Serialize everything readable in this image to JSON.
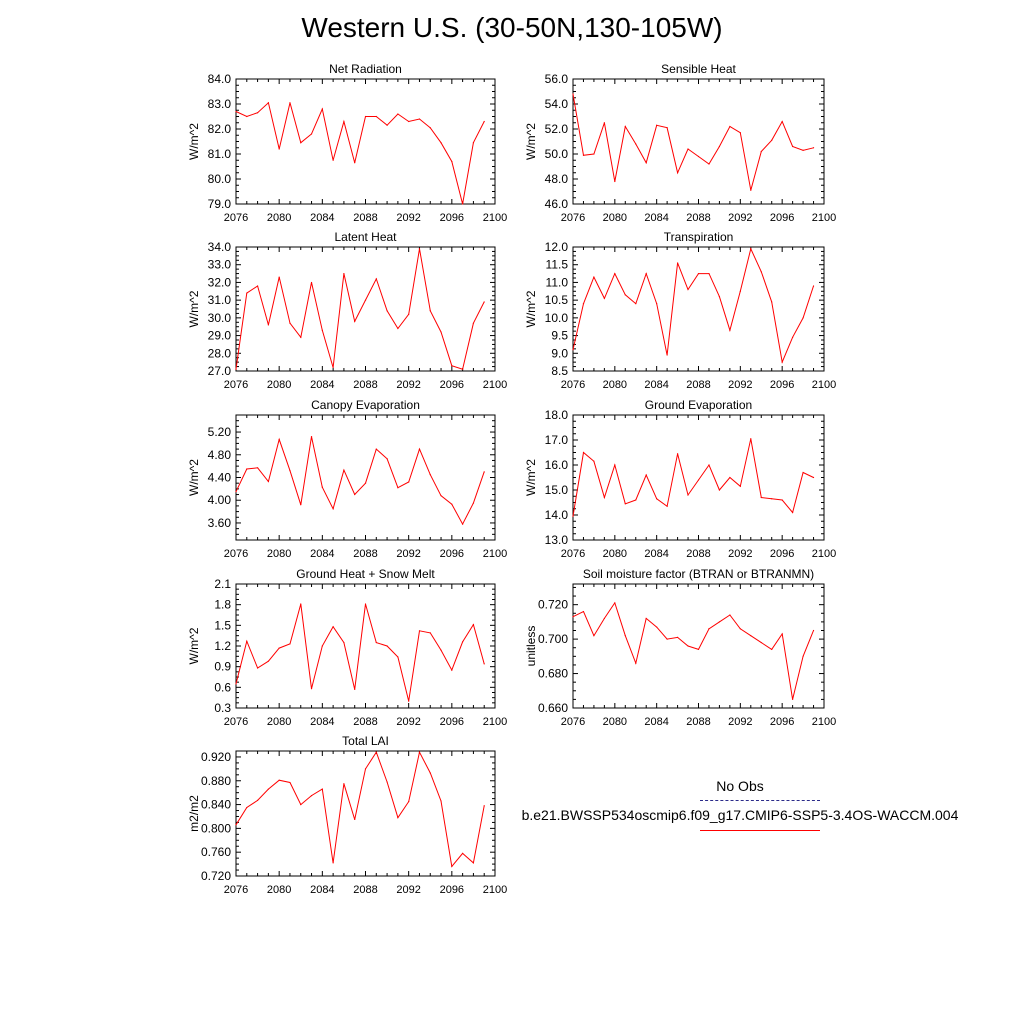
{
  "page_title": "Western U.S. (30-50N,130-105W)",
  "colors": {
    "series": "#ff0000",
    "obs": "#2b2b8a",
    "axis": "#000000"
  },
  "legend": {
    "obs_label": "No Obs",
    "run_label": "b.e21.BWSSP534oscmip6.f09_g17.CMIP6-SSP5-3.4OS-WACCM.004"
  },
  "chart_data": [
    {
      "type": "line",
      "title": "Net Radiation",
      "ylabel": "W/m^2",
      "xlim": [
        2076,
        2100
      ],
      "ylim": [
        79.0,
        84.0
      ],
      "xticks": [
        "2076",
        "2080",
        "2084",
        "2088",
        "2092",
        "2096",
        "2100"
      ],
      "yticks": [
        "79.0",
        "80.0",
        "81.0",
        "82.0",
        "83.0",
        "84.0"
      ],
      "x": [
        2076,
        2077,
        2078,
        2079,
        2080,
        2081,
        2082,
        2083,
        2084,
        2085,
        2086,
        2087,
        2088,
        2089,
        2090,
        2091,
        2092,
        2093,
        2094,
        2095,
        2096,
        2097,
        2098,
        2099
      ],
      "values": [
        82.7,
        82.5,
        82.65,
        83.05,
        81.2,
        83.05,
        81.45,
        81.8,
        82.8,
        80.75,
        82.3,
        80.65,
        82.5,
        82.5,
        82.15,
        82.6,
        82.3,
        82.4,
        82.05,
        81.45,
        80.7,
        79.0,
        81.45,
        82.3
      ]
    },
    {
      "type": "line",
      "title": "Sensible Heat",
      "ylabel": "W/m^2",
      "xlim": [
        2076,
        2100
      ],
      "ylim": [
        46.0,
        56.0
      ],
      "xticks": [
        "2076",
        "2080",
        "2084",
        "2088",
        "2092",
        "2096",
        "2100"
      ],
      "yticks": [
        "46.0",
        "48.0",
        "50.0",
        "52.0",
        "54.0",
        "56.0"
      ],
      "x": [
        2076,
        2077,
        2078,
        2079,
        2080,
        2081,
        2082,
        2083,
        2084,
        2085,
        2086,
        2087,
        2088,
        2089,
        2090,
        2091,
        2092,
        2093,
        2094,
        2095,
        2096,
        2097,
        2098,
        2099
      ],
      "values": [
        54.8,
        49.9,
        50.0,
        52.5,
        47.8,
        52.2,
        50.8,
        49.3,
        52.3,
        52.1,
        48.5,
        50.4,
        49.8,
        49.2,
        50.6,
        52.2,
        51.7,
        47.1,
        50.2,
        51.1,
        52.6,
        50.6,
        50.3,
        50.5
      ]
    },
    {
      "type": "line",
      "title": "Latent Heat",
      "ylabel": "W/m^2",
      "xlim": [
        2076,
        2100
      ],
      "ylim": [
        27.0,
        34.0
      ],
      "xticks": [
        "2076",
        "2080",
        "2084",
        "2088",
        "2092",
        "2096",
        "2100"
      ],
      "yticks": [
        "27.0",
        "28.0",
        "29.0",
        "30.0",
        "31.0",
        "32.0",
        "33.0",
        "34.0"
      ],
      "x": [
        2076,
        2077,
        2078,
        2079,
        2080,
        2081,
        2082,
        2083,
        2084,
        2085,
        2086,
        2087,
        2088,
        2089,
        2090,
        2091,
        2092,
        2093,
        2094,
        2095,
        2096,
        2097,
        2098,
        2099
      ],
      "values": [
        27.1,
        31.4,
        31.8,
        29.6,
        32.3,
        29.7,
        28.9,
        32.0,
        29.3,
        27.2,
        32.5,
        29.8,
        31.0,
        32.2,
        30.4,
        29.4,
        30.2,
        33.9,
        30.4,
        29.2,
        27.3,
        27.1,
        29.7,
        30.9
      ]
    },
    {
      "type": "line",
      "title": "Transpiration",
      "ylabel": "W/m^2",
      "xlim": [
        2076,
        2100
      ],
      "ylim": [
        8.5,
        12.0
      ],
      "xticks": [
        "2076",
        "2080",
        "2084",
        "2088",
        "2092",
        "2096",
        "2100"
      ],
      "yticks": [
        "8.5",
        "9.0",
        "9.5",
        "10.0",
        "10.5",
        "11.0",
        "11.5",
        "12.0"
      ],
      "x": [
        2076,
        2077,
        2078,
        2079,
        2080,
        2081,
        2082,
        2083,
        2084,
        2085,
        2086,
        2087,
        2088,
        2089,
        2090,
        2091,
        2092,
        2093,
        2094,
        2095,
        2096,
        2097,
        2098,
        2099
      ],
      "values": [
        9.1,
        10.4,
        11.15,
        10.55,
        11.25,
        10.65,
        10.4,
        11.25,
        10.4,
        8.95,
        11.55,
        10.8,
        11.25,
        11.25,
        10.6,
        9.65,
        10.75,
        11.95,
        11.3,
        10.45,
        8.75,
        9.45,
        10.0,
        10.9
      ]
    },
    {
      "type": "line",
      "title": "Canopy Evaporation",
      "ylabel": "W/m^2",
      "xlim": [
        2076,
        2100
      ],
      "ylim": [
        3.3,
        5.5
      ],
      "xticks": [
        "2076",
        "2080",
        "2084",
        "2088",
        "2092",
        "2096",
        "2100"
      ],
      "yticks": [
        "3.60",
        "4.00",
        "4.40",
        "4.80",
        "5.20"
      ],
      "x": [
        2076,
        2077,
        2078,
        2079,
        2080,
        2081,
        2082,
        2083,
        2084,
        2085,
        2086,
        2087,
        2088,
        2089,
        2090,
        2091,
        2092,
        2093,
        2094,
        2095,
        2096,
        2097,
        2098,
        2099
      ],
      "values": [
        4.15,
        4.55,
        4.57,
        4.33,
        5.07,
        4.52,
        3.92,
        5.12,
        4.23,
        3.85,
        4.53,
        4.1,
        4.3,
        4.9,
        4.73,
        4.22,
        4.32,
        4.9,
        4.45,
        4.08,
        3.93,
        3.58,
        3.95,
        4.5
      ]
    },
    {
      "type": "line",
      "title": "Ground Evaporation",
      "ylabel": "W/m^2",
      "xlim": [
        2076,
        2100
      ],
      "ylim": [
        13.0,
        18.0
      ],
      "xticks": [
        "2076",
        "2080",
        "2084",
        "2088",
        "2092",
        "2096",
        "2100"
      ],
      "yticks": [
        "13.0",
        "14.0",
        "15.0",
        "16.0",
        "17.0",
        "18.0"
      ],
      "x": [
        2076,
        2077,
        2078,
        2079,
        2080,
        2081,
        2082,
        2083,
        2084,
        2085,
        2086,
        2087,
        2088,
        2089,
        2090,
        2091,
        2092,
        2093,
        2094,
        2095,
        2096,
        2097,
        2098,
        2099
      ],
      "values": [
        13.95,
        16.5,
        16.15,
        14.7,
        16.0,
        14.45,
        14.6,
        15.6,
        14.65,
        14.35,
        16.45,
        14.8,
        15.4,
        16.0,
        15.0,
        15.5,
        15.15,
        17.05,
        14.7,
        14.65,
        14.6,
        14.1,
        15.7,
        15.5
      ]
    },
    {
      "type": "line",
      "title": "Ground Heat + Snow Melt",
      "ylabel": "W/m^2",
      "xlim": [
        2076,
        2100
      ],
      "ylim": [
        0.3,
        2.1
      ],
      "xticks": [
        "2076",
        "2080",
        "2084",
        "2088",
        "2092",
        "2096",
        "2100"
      ],
      "yticks": [
        "0.3",
        "0.6",
        "0.9",
        "1.2",
        "1.5",
        "1.8",
        "2.1"
      ],
      "x": [
        2076,
        2077,
        2078,
        2079,
        2080,
        2081,
        2082,
        2083,
        2084,
        2085,
        2086,
        2087,
        2088,
        2089,
        2090,
        2091,
        2092,
        2093,
        2094,
        2095,
        2096,
        2097,
        2098,
        2099
      ],
      "values": [
        0.65,
        1.27,
        0.88,
        0.98,
        1.17,
        1.23,
        1.81,
        0.58,
        1.2,
        1.48,
        1.25,
        0.57,
        1.81,
        1.25,
        1.2,
        1.04,
        0.4,
        1.42,
        1.39,
        1.14,
        0.85,
        1.26,
        1.51,
        0.94
      ]
    },
    {
      "type": "line",
      "title": "Soil moisture factor (BTRAN or BTRANMN)",
      "ylabel": "unitless",
      "xlim": [
        2076,
        2100
      ],
      "ylim": [
        0.66,
        0.732
      ],
      "xticks": [
        "2076",
        "2080",
        "2084",
        "2088",
        "2092",
        "2096",
        "2100"
      ],
      "yticks": [
        "0.660",
        "0.680",
        "0.700",
        "0.720"
      ],
      "x": [
        2076,
        2077,
        2078,
        2079,
        2080,
        2081,
        2082,
        2083,
        2084,
        2085,
        2086,
        2087,
        2088,
        2089,
        2090,
        2091,
        2092,
        2093,
        2094,
        2095,
        2096,
        2097,
        2098,
        2099
      ],
      "values": [
        0.713,
        0.716,
        0.702,
        0.712,
        0.721,
        0.702,
        0.686,
        0.712,
        0.707,
        0.7,
        0.701,
        0.696,
        0.694,
        0.706,
        0.71,
        0.714,
        0.706,
        0.702,
        0.698,
        0.694,
        0.703,
        0.665,
        0.69,
        0.705
      ]
    },
    {
      "type": "line",
      "title": "Total LAI",
      "ylabel": "m2/m2",
      "xlim": [
        2076,
        2100
      ],
      "ylim": [
        0.72,
        0.93
      ],
      "xticks": [
        "2076",
        "2080",
        "2084",
        "2088",
        "2092",
        "2096",
        "2100"
      ],
      "yticks": [
        "0.720",
        "0.760",
        "0.800",
        "0.840",
        "0.880",
        "0.920"
      ],
      "x": [
        2076,
        2077,
        2078,
        2079,
        2080,
        2081,
        2082,
        2083,
        2084,
        2085,
        2086,
        2087,
        2088,
        2089,
        2090,
        2091,
        2092,
        2093,
        2094,
        2095,
        2096,
        2097,
        2098,
        2099
      ],
      "values": [
        0.806,
        0.835,
        0.847,
        0.866,
        0.881,
        0.877,
        0.84,
        0.855,
        0.866,
        0.742,
        0.875,
        0.815,
        0.9,
        0.928,
        0.878,
        0.818,
        0.845,
        0.928,
        0.893,
        0.846,
        0.736,
        0.758,
        0.742,
        0.838
      ]
    }
  ]
}
